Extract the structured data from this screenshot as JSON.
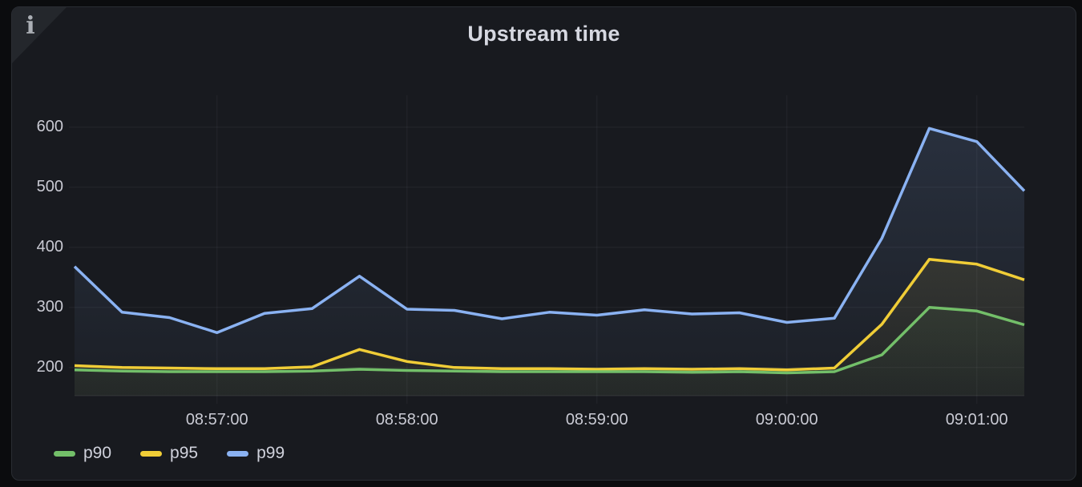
{
  "panel": {
    "title": "Upstream time",
    "info_icon": "i"
  },
  "colors": {
    "page_background": "#0b0c0e",
    "panel_background": "#181a1f",
    "panel_border": "#2a2d33",
    "corner_triangle": "#24272c",
    "grid": "rgba(204,204,220,0.07)",
    "axis_line": "rgba(204,204,220,0.12)",
    "axis_text": "#c9cad3",
    "title_text": "#d6d8e1",
    "p90": "#73bf69",
    "p95": "#f0cd37",
    "p99": "#8ab2f2"
  },
  "chart_data": {
    "type": "area",
    "title": "Upstream time",
    "xlabel": "",
    "ylabel": "",
    "grid": true,
    "legend_position": "bottom",
    "ylim": [
      153,
      653
    ],
    "x": [
      "08:56:15",
      "08:56:30",
      "08:56:45",
      "08:57:00",
      "08:57:15",
      "08:57:30",
      "08:57:45",
      "08:58:00",
      "08:58:15",
      "08:58:30",
      "08:58:45",
      "08:59:00",
      "08:59:15",
      "08:59:30",
      "08:59:45",
      "09:00:00",
      "09:00:15",
      "09:00:30",
      "09:00:45",
      "09:01:00",
      "09:01:15"
    ],
    "series": [
      {
        "name": "p90",
        "color": "#73bf69",
        "values": [
          196,
          194,
          193,
          193,
          193,
          194,
          197,
          195,
          194,
          193,
          193,
          193,
          193,
          192,
          193,
          191,
          193,
          221,
          300,
          294,
          271
        ]
      },
      {
        "name": "p95",
        "color": "#f0cd37",
        "values": [
          203,
          200,
          199,
          198,
          198,
          201,
          230,
          210,
          200,
          198,
          198,
          197,
          198,
          197,
          198,
          196,
          199,
          272,
          380,
          372,
          346
        ]
      },
      {
        "name": "p99",
        "color": "#8ab2f2",
        "values": [
          368,
          292,
          283,
          258,
          290,
          298,
          352,
          297,
          295,
          281,
          292,
          287,
          296,
          289,
          291,
          275,
          282,
          415,
          598,
          576,
          494
        ]
      }
    ],
    "xticks": [
      {
        "index": 3,
        "label": "08:57:00"
      },
      {
        "index": 7,
        "label": "08:58:00"
      },
      {
        "index": 11,
        "label": "08:59:00"
      },
      {
        "index": 15,
        "label": "09:00:00"
      },
      {
        "index": 19,
        "label": "09:01:00"
      }
    ],
    "yticks": [
      {
        "value": 200,
        "label": "200"
      },
      {
        "value": 300,
        "label": "300"
      },
      {
        "value": 400,
        "label": "400"
      },
      {
        "value": 500,
        "label": "500"
      },
      {
        "value": 600,
        "label": "600"
      }
    ]
  }
}
